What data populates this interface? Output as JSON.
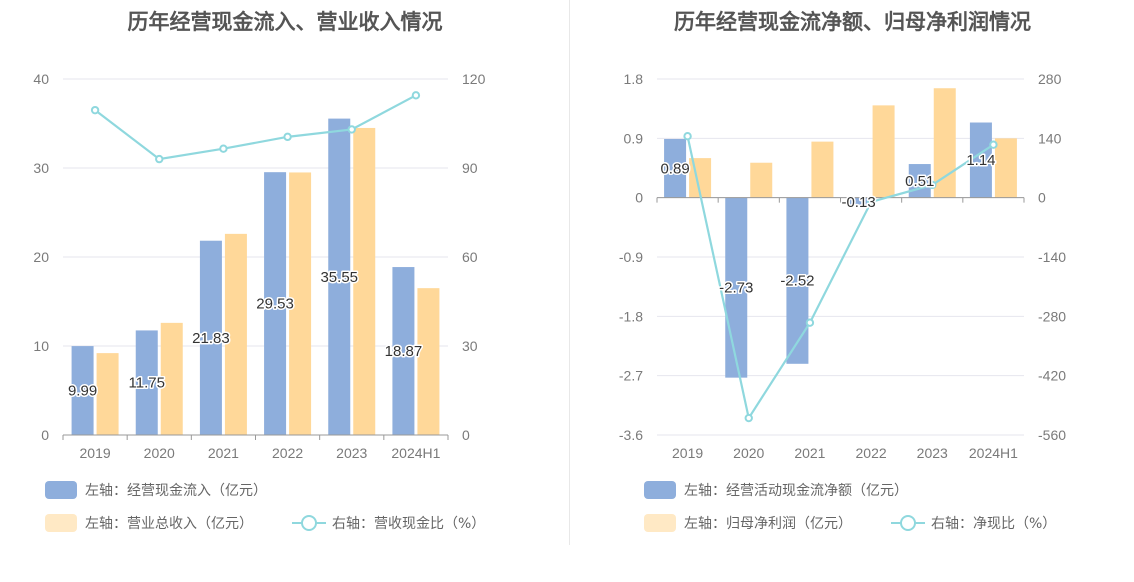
{
  "colors": {
    "bar1": "#8eaedc",
    "bar2": "#ffd899",
    "line": "#8fd8de",
    "grid": "#e6e6ee",
    "axis": "#999999"
  },
  "chart_data": [
    {
      "type": "bar",
      "title": "历年经营现金流入、营业收入情况",
      "categories": [
        "2019",
        "2020",
        "2021",
        "2022",
        "2023",
        "2024H1"
      ],
      "ylim_left": [
        0,
        40
      ],
      "ylim_right": [
        0,
        120
      ],
      "left_ticks": [
        "0",
        "10",
        "20",
        "30",
        "40"
      ],
      "right_ticks": [
        "0",
        "30",
        "60",
        "90",
        "120"
      ],
      "grid": true,
      "legend_position": "bottom-left",
      "series": [
        {
          "name": "左轴：经营现金流入（亿元）",
          "kind": "bar",
          "axis": "left",
          "values": [
            9.99,
            11.75,
            21.83,
            29.53,
            35.55,
            18.87
          ],
          "labels": [
            "9.99",
            "11.75",
            "21.83",
            "29.53",
            "35.55",
            "18.87"
          ]
        },
        {
          "name": "左轴：营业总收入（亿元）",
          "kind": "bar",
          "axis": "left",
          "values": [
            9.2,
            12.6,
            22.6,
            29.5,
            34.5,
            16.5
          ]
        },
        {
          "name": "右轴：营收现金比（%）",
          "kind": "line",
          "axis": "right",
          "values": [
            109.5,
            93.0,
            96.5,
            100.5,
            103.0,
            114.5
          ]
        }
      ]
    },
    {
      "type": "bar",
      "title": "历年经营现金流净额、归母净利润情况",
      "categories": [
        "2019",
        "2020",
        "2021",
        "2022",
        "2023",
        "2024H1"
      ],
      "ylim_left": [
        -3.6,
        1.8
      ],
      "ylim_right": [
        -560,
        280
      ],
      "left_ticks": [
        "-3.6",
        "-2.7",
        "-1.8",
        "-0.9",
        "0",
        "0.9",
        "1.8"
      ],
      "right_ticks": [
        "-560",
        "-420",
        "-280",
        "-140",
        "0",
        "140",
        "280"
      ],
      "grid": true,
      "legend_position": "bottom-left",
      "series": [
        {
          "name": "左轴：经营活动现金流净额（亿元）",
          "kind": "bar",
          "axis": "left",
          "values": [
            0.89,
            -2.73,
            -2.52,
            -0.13,
            0.51,
            1.14
          ],
          "labels": [
            "0.89",
            "-2.73",
            "-2.52",
            "-0.13",
            "0.51",
            "1.14"
          ]
        },
        {
          "name": "左轴：归母净利润（亿元）",
          "kind": "bar",
          "axis": "left",
          "values": [
            0.6,
            0.53,
            0.85,
            1.4,
            1.66,
            0.9
          ]
        },
        {
          "name": "右轴：净现比（%）",
          "kind": "line",
          "axis": "right",
          "values": [
            145,
            -520,
            -295,
            -10,
            30,
            125
          ]
        }
      ]
    }
  ]
}
